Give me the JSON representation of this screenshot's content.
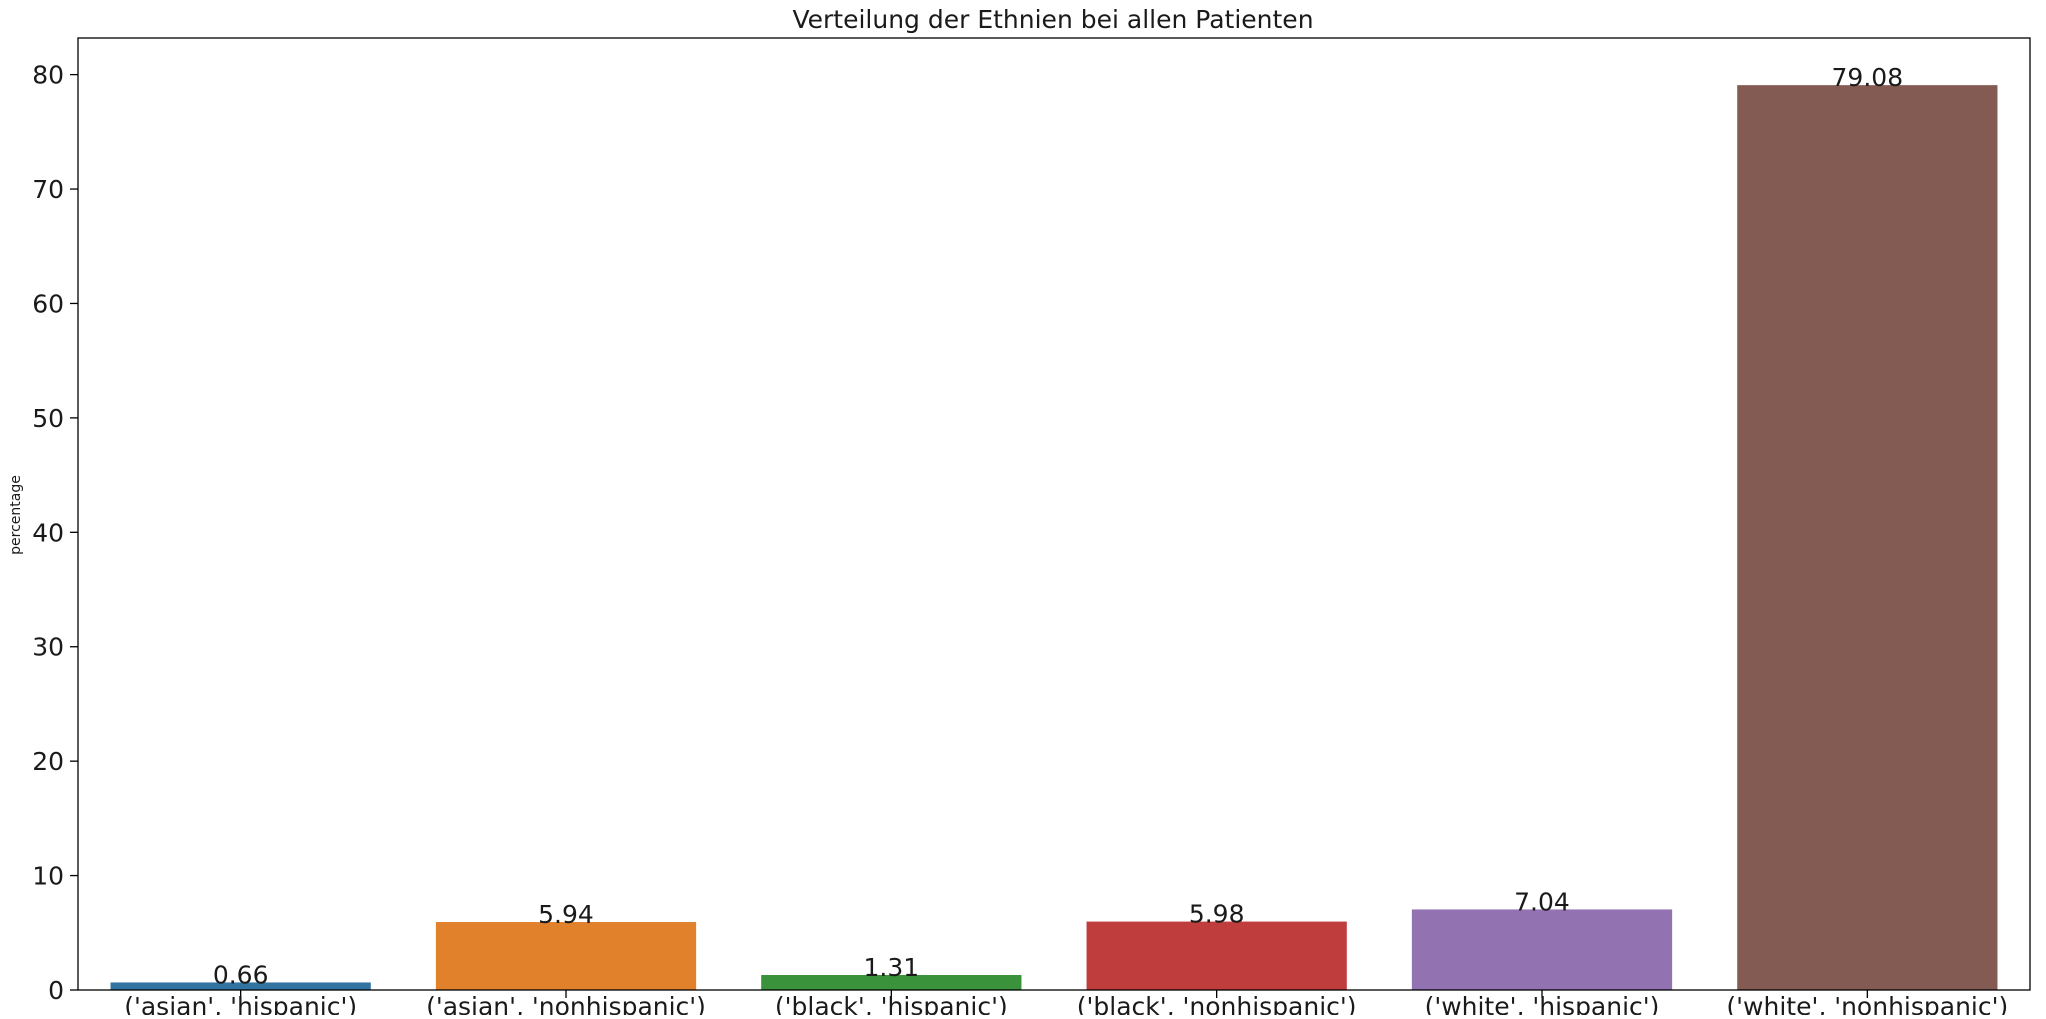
{
  "chart_data": {
    "type": "bar",
    "title": "Verteilung der Ethnien bei allen Patienten",
    "xlabel": "",
    "ylabel": "percentage",
    "ylim": [
      0,
      83.2
    ],
    "yticks": [
      0,
      10,
      20,
      30,
      40,
      50,
      60,
      70,
      80
    ],
    "grid": false,
    "categories": [
      "('asian', 'hispanic')",
      "('asian', 'nonhispanic')",
      "('black', 'hispanic')",
      "('black', 'nonhispanic')",
      "('white', 'hispanic')",
      "('white', 'nonhispanic')"
    ],
    "values": [
      0.66,
      5.94,
      1.31,
      5.98,
      7.04,
      79.08
    ],
    "value_labels": [
      "0.66",
      "5.94",
      "1.31",
      "5.98",
      "7.04",
      "79.08"
    ],
    "colors": [
      "#3274a1",
      "#e1812c",
      "#3a923a",
      "#c03d3e",
      "#9372b2",
      "#845b53"
    ]
  }
}
